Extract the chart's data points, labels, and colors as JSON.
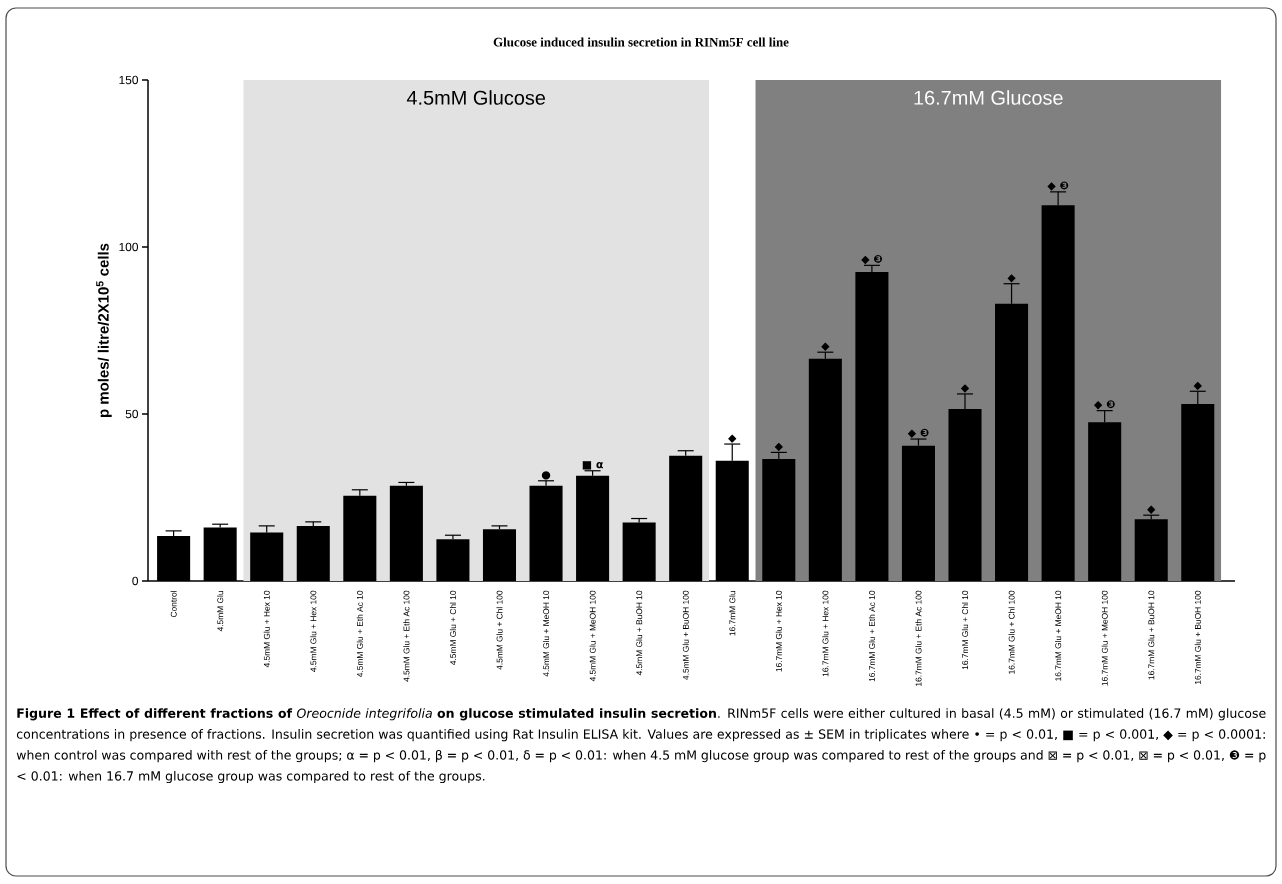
{
  "chart_data": {
    "type": "bar",
    "title": "Glucose induced insulin secretion in RINm5F cell line",
    "ylabel": "p moles/ litre/2X10$^{5}$ cells",
    "categories": [
      "Control",
      "4.5mM Glu",
      "4.5mM Glu + Hex 10",
      "4.5mM Glu + Hex 100",
      "4.5mM Glu + Eth Ac 10",
      "4.5mM Glu + Eth Ac 100",
      "4.5mM Glu + Chl 10",
      "4.5mM Glu + Chl 100",
      "4.5mM Glu + MeOH 10",
      "4.5mM Glu + MeOH 100",
      "4.5mM Glu + BuOH 10",
      "4.5mM Glu + BuOH 100",
      "16.7mM Glu",
      "16.7mM Glu + Hex 10",
      "16.7mM Glu + Hex 100",
      "16.7mM Glu + Eth Ac 10",
      "16.7mM Glu + Eth Ac 100",
      "16.7mM Glu + Chl 10",
      "16.7mM Glu + Chl 100",
      "16.7mM Glu + MeOH 10",
      "16.7mM Glu + MeOH 100",
      "16.7mM Glu + BuOH 10",
      "16.7mM Glu + BuOH 100"
    ],
    "values": [
      13.5,
      16,
      14.5,
      16.5,
      25.5,
      28.5,
      12.5,
      15.5,
      28.5,
      31.5,
      17.5,
      37.5,
      36,
      36.5,
      66.5,
      92.5,
      40.5,
      51.5,
      83,
      112.5,
      47.5,
      18.5,
      53
    ],
    "errors": [
      1.5,
      1,
      2,
      1.2,
      1.8,
      1,
      1.2,
      1,
      1.5,
      1.5,
      1.2,
      1.5,
      5,
      2,
      2,
      2,
      2,
      4.5,
      6,
      4,
      3.5,
      1.2,
      3.8
    ],
    "color": "#000000",
    "ylim": [
      0,
      150
    ],
    "yticks": [
      0,
      50,
      100,
      150
    ],
    "grid": false,
    "bands": [
      {
        "axis": "x",
        "from": "4.5mM Glu + Hex 10",
        "to": "4.5mM Glu + BuOH 100",
        "label": "4.5mM Glucose",
        "color": "#e2e2e2"
      },
      {
        "axis": "x",
        "from": "16.7mM Glu + Hex 10",
        "to": "16.7mM Glu + BuOH 100",
        "label": "16.7mM Glucose",
        "color": "#808080"
      }
    ],
    "annotations": [
      {
        "text": "●",
        "x": "4.5mM Glu + MeOH 10",
        "y": 30
      },
      {
        "text": "■ α",
        "x": "4.5mM Glu + MeOH 100",
        "y": 33
      },
      {
        "text": "◆",
        "x": "16.7mM Glu",
        "y": 41
      },
      {
        "text": "◆",
        "x": "16.7mM Glu + Hex 10",
        "y": 38.5
      },
      {
        "text": "◆",
        "x": "16.7mM Glu + Hex 100",
        "y": 68.5
      },
      {
        "text": "◆ ❸",
        "x": "16.7mM Glu + Eth Ac 10",
        "y": 94.5
      },
      {
        "text": "◆ ❸",
        "x": "16.7mM Glu + Eth Ac 100",
        "y": 42.5
      },
      {
        "text": "◆",
        "x": "16.7mM Glu + Chl 10",
        "y": 56
      },
      {
        "text": "◆",
        "x": "16.7mM Glu + Chl 100",
        "y": 89
      },
      {
        "text": "◆ ❸",
        "x": "16.7mM Glu + MeOH 10",
        "y": 116.5
      },
      {
        "text": "◆ ❸",
        "x": "16.7mM Glu + MeOH 100",
        "y": 51
      },
      {
        "text": "◆",
        "x": "16.7mM Glu + BuOH 10",
        "y": 19.7
      },
      {
        "text": "◆",
        "x": "16.7mM Glu + BuOH 100",
        "y": 56.8
      },
      "**Figure 1 Effect of different fractions of** *Oreocnide integrifolia* **on glucose stimulated insulin secretion**. RINm5F cells were either cultured in basal (4.5 mM) or stimulated (16.7 mM) glucose concentrations in presence of fractions. Insulin secretion was quantified using Rat Insulin ELISA kit. Values are expressed as ± SEM in triplicates where • = p < 0.01, ■ = p < 0.001, ◆ = p < 0.0001: when control was compared with rest of the groups; α = p < 0.01, β = p < 0.01, δ = p < 0.01: when 4.5 mM glucose group was compared to rest of the groups and ⊠ = p < 0.01, ⊠ = p < 0.01, ❸ = p < 0.01: when 16.7 mM glucose group was compared to rest of the groups."
    ]
  }
}
